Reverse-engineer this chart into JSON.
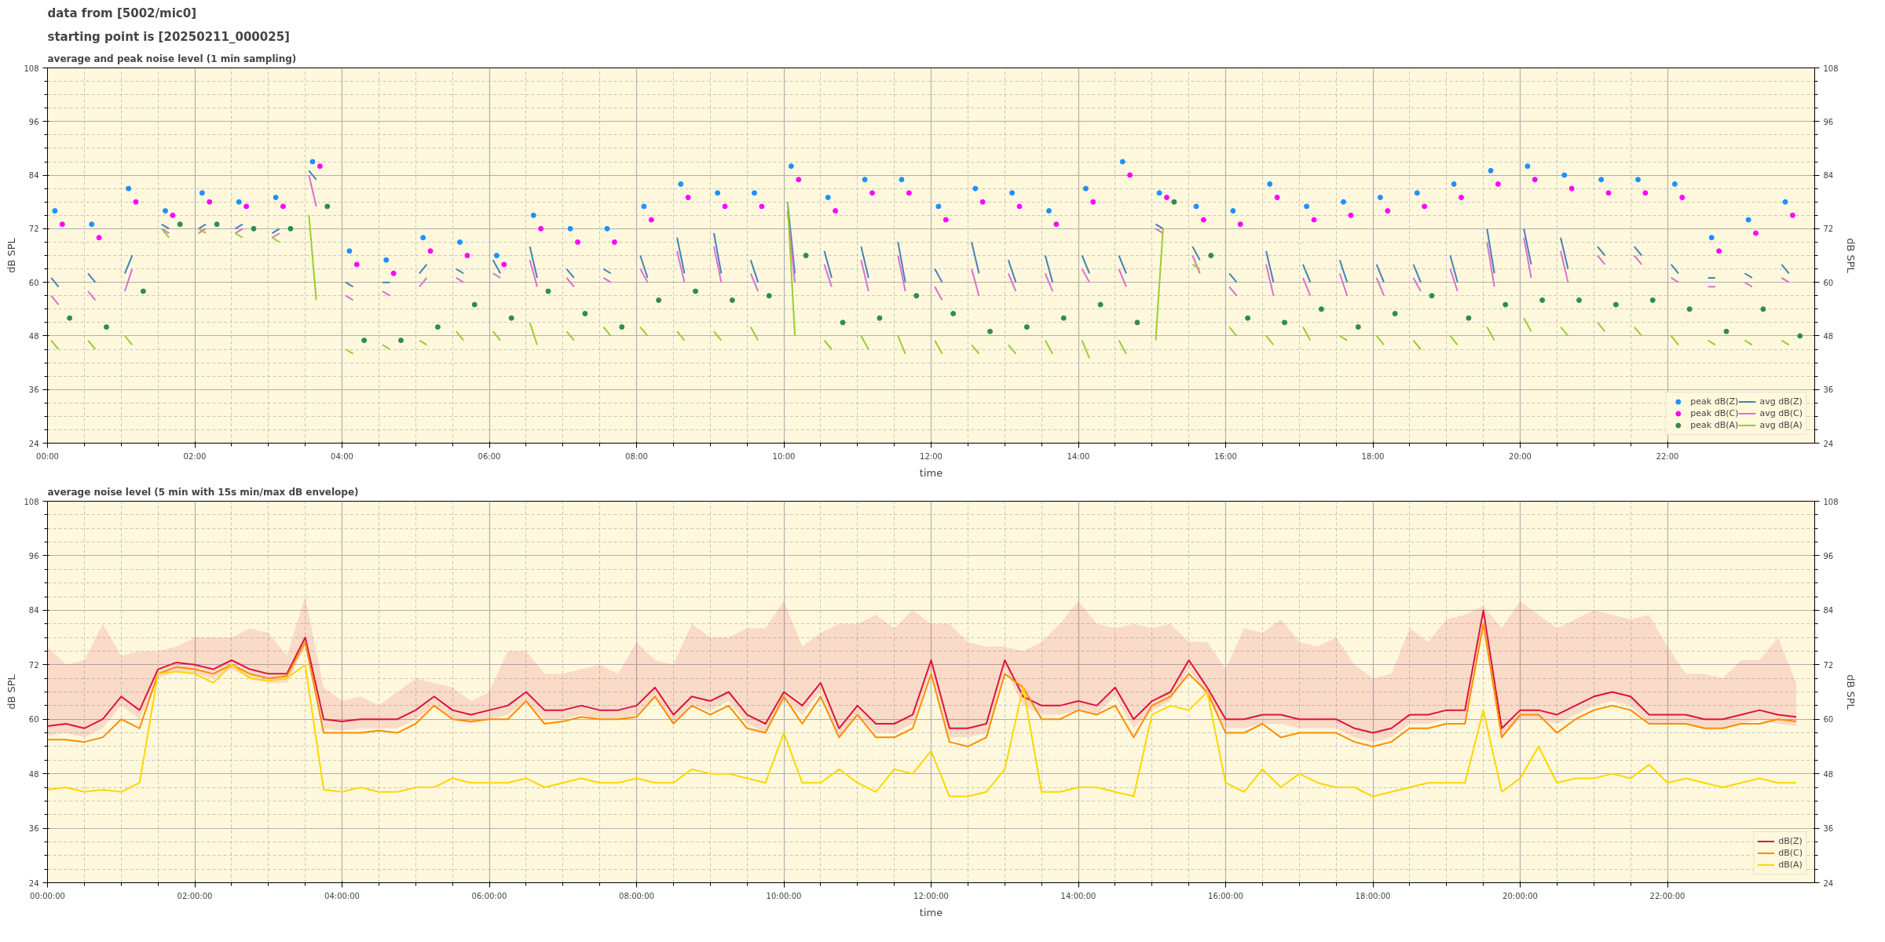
{
  "chart_data": [
    {
      "type": "line",
      "title": "average and peak noise level (1 min sampling)",
      "annotations": [
        "data from [5002/mic0]",
        "starting point is [20250211_000025]"
      ],
      "xlabel": "time",
      "ylabel": "dB SPL",
      "y2label": "dB SPL",
      "xlim": [
        0,
        24
      ],
      "ylim": [
        24,
        108
      ],
      "y2lim": [
        24,
        108
      ],
      "xticks": [
        {
          "value": 0,
          "label": "00:00"
        },
        {
          "value": 2,
          "label": "02:00"
        },
        {
          "value": 4,
          "label": "04:00"
        },
        {
          "value": 6,
          "label": "06:00"
        },
        {
          "value": 8,
          "label": "08:00"
        },
        {
          "value": 10,
          "label": "10:00"
        },
        {
          "value": 12,
          "label": "12:00"
        },
        {
          "value": 14,
          "label": "14:00"
        },
        {
          "value": 16,
          "label": "16:00"
        },
        {
          "value": 18,
          "label": "18:00"
        },
        {
          "value": 20,
          "label": "20:00"
        },
        {
          "value": 22,
          "label": "22:00"
        }
      ],
      "yticks": [
        24,
        36,
        48,
        60,
        72,
        84,
        96,
        108
      ],
      "y2ticks": [
        24,
        36,
        48,
        60,
        72,
        84,
        96,
        108
      ],
      "grid": true,
      "legend": "bottom right",
      "x": [
        0.05,
        0.15,
        0.2,
        0.55,
        0.65,
        0.7,
        1.05,
        1.15,
        1.2,
        1.55,
        1.65,
        1.7,
        2.05,
        2.15,
        2.2,
        2.55,
        2.65,
        2.7,
        3.05,
        3.15,
        3.2,
        3.55,
        3.65,
        3.7,
        4.05,
        4.15,
        4.2,
        4.55,
        4.65,
        4.7,
        5.05,
        5.15,
        5.2,
        5.55,
        5.65,
        5.7,
        6.05,
        6.15,
        6.2,
        6.55,
        6.65,
        6.7,
        7.05,
        7.15,
        7.2,
        7.55,
        7.65,
        7.7,
        8.05,
        8.15,
        8.2,
        8.55,
        8.65,
        8.7,
        9.05,
        9.15,
        9.2,
        9.55,
        9.65,
        9.7,
        10.05,
        10.15,
        10.2,
        10.55,
        10.65,
        10.7,
        11.05,
        11.15,
        11.2,
        11.55,
        11.65,
        11.7,
        12.05,
        12.15,
        12.2,
        12.55,
        12.65,
        12.7,
        13.05,
        13.15,
        13.2,
        13.55,
        13.65,
        13.7,
        14.05,
        14.15,
        14.2,
        14.55,
        14.65,
        14.7,
        15.05,
        15.15,
        15.2,
        15.55,
        15.65,
        15.7,
        16.05,
        16.15,
        16.2,
        16.55,
        16.65,
        16.7,
        17.05,
        17.15,
        17.2,
        17.55,
        17.65,
        17.7,
        18.05,
        18.15,
        18.2,
        18.55,
        18.65,
        18.7,
        19.05,
        19.15,
        19.2,
        19.55,
        19.65,
        19.7,
        20.05,
        20.15,
        20.2,
        20.55,
        20.65,
        20.7,
        21.05,
        21.15,
        21.2,
        21.55,
        21.65,
        21.7,
        22.05,
        22.15,
        22.2,
        22.55,
        22.65,
        22.7,
        23.05,
        23.15,
        23.2,
        23.55,
        23.65
      ],
      "series": [
        {
          "name": "peak dB(Z)",
          "type": "scatter",
          "color": "#1e90ff",
          "x": [
            0.1,
            0.6,
            1.1,
            1.6,
            2.1,
            2.6,
            3.1,
            3.6,
            4.1,
            4.6,
            5.1,
            5.6,
            6.1,
            6.6,
            7.1,
            7.6,
            8.1,
            8.6,
            9.1,
            9.6,
            10.1,
            10.6,
            11.1,
            11.6,
            12.1,
            12.6,
            13.1,
            13.6,
            14.1,
            14.6,
            15.1,
            15.6,
            16.1,
            16.6,
            17.1,
            17.6,
            18.1,
            18.6,
            19.1,
            19.6,
            20.1,
            20.6,
            21.1,
            21.6,
            22.1,
            22.6,
            23.1,
            23.6
          ],
          "values": [
            76,
            73,
            81,
            76,
            80,
            78,
            79,
            87,
            67,
            65,
            70,
            69,
            66,
            75,
            72,
            72,
            77,
            82,
            80,
            80,
            86,
            79,
            83,
            83,
            77,
            81,
            80,
            76,
            81,
            87,
            80,
            77,
            76,
            82,
            77,
            78,
            79,
            80,
            82,
            85,
            86,
            84,
            83,
            83,
            82,
            70,
            74,
            78
          ]
        },
        {
          "name": "peak dB(C)",
          "type": "scatter",
          "color": "#ff00ff",
          "x": [
            0.2,
            0.7,
            1.2,
            1.7,
            2.2,
            2.7,
            3.2,
            3.7,
            4.2,
            4.7,
            5.2,
            5.7,
            6.2,
            6.7,
            7.2,
            7.7,
            8.2,
            8.7,
            9.2,
            9.7,
            10.2,
            10.7,
            11.2,
            11.7,
            12.2,
            12.7,
            13.2,
            13.7,
            14.2,
            14.7,
            15.2,
            15.7,
            16.2,
            16.7,
            17.2,
            17.7,
            18.2,
            18.7,
            19.2,
            19.7,
            20.2,
            20.7,
            21.2,
            21.7,
            22.2,
            22.7,
            23.2,
            23.7
          ],
          "values": [
            73,
            70,
            78,
            75,
            78,
            77,
            77,
            86,
            64,
            62,
            67,
            66,
            64,
            72,
            69,
            69,
            74,
            79,
            77,
            77,
            83,
            76,
            80,
            80,
            74,
            78,
            77,
            73,
            78,
            84,
            79,
            74,
            73,
            79,
            74,
            75,
            76,
            77,
            79,
            82,
            83,
            81,
            80,
            80,
            79,
            67,
            71,
            75
          ]
        },
        {
          "name": "peak dB(A)",
          "type": "scatter",
          "color": "#2e8b57",
          "x": [
            0.3,
            0.8,
            1.3,
            1.8,
            2.3,
            2.8,
            3.3,
            3.8,
            4.3,
            4.8,
            5.3,
            5.8,
            6.3,
            6.8,
            7.3,
            7.8,
            8.3,
            8.8,
            9.3,
            9.8,
            10.3,
            10.8,
            11.3,
            11.8,
            12.3,
            12.8,
            13.3,
            13.8,
            14.3,
            14.8,
            15.3,
            15.8,
            16.3,
            16.8,
            17.3,
            17.8,
            18.3,
            18.8,
            19.3,
            19.8,
            20.3,
            20.8,
            21.3,
            21.8,
            22.3,
            22.8,
            23.3,
            23.8
          ],
          "values": [
            52,
            50,
            58,
            73,
            73,
            72,
            72,
            77,
            47,
            47,
            50,
            55,
            52,
            58,
            53,
            50,
            56,
            58,
            56,
            57,
            66,
            51,
            52,
            57,
            53,
            49,
            50,
            52,
            55,
            51,
            78,
            66,
            52,
            51,
            54,
            50,
            53,
            57,
            52,
            55,
            56,
            56,
            55,
            56,
            54,
            49,
            54,
            48
          ]
        },
        {
          "name": "avg dB(Z)",
          "color": "#4682b4",
          "values": [
            61,
            59,
            null,
            62,
            60,
            null,
            62,
            66,
            null,
            73,
            72,
            null,
            72,
            73,
            null,
            72,
            73,
            null,
            71,
            72,
            null,
            85,
            83,
            null,
            60,
            59,
            null,
            60,
            60,
            null,
            62,
            64,
            null,
            63,
            62,
            null,
            65,
            62,
            null,
            68,
            61,
            null,
            63,
            61,
            null,
            63,
            62,
            null,
            66,
            61,
            null,
            70,
            62,
            null,
            71,
            62,
            null,
            65,
            60,
            null,
            78,
            62,
            null,
            67,
            61,
            null,
            68,
            61,
            null,
            69,
            60,
            null,
            63,
            60,
            null,
            69,
            62,
            null,
            65,
            60,
            null,
            66,
            60,
            null,
            66,
            62,
            null,
            66,
            62,
            null,
            73,
            72,
            null,
            68,
            65,
            null,
            62,
            60,
            null,
            67,
            60,
            null,
            64,
            60,
            null,
            65,
            60,
            null,
            64,
            60,
            null,
            64,
            60,
            null,
            66,
            60,
            null,
            72,
            62,
            null,
            72,
            64,
            null,
            70,
            63,
            null,
            68,
            66,
            null,
            68,
            66,
            null,
            64,
            62,
            null,
            61,
            61,
            null,
            62,
            61,
            null,
            64,
            62
          ]
        },
        {
          "name": "avg dB(C)",
          "color": "#da70d6",
          "values": [
            57,
            55,
            null,
            58,
            56,
            null,
            58,
            63,
            null,
            72,
            71,
            null,
            71,
            72,
            null,
            71,
            72,
            null,
            70,
            71,
            null,
            84,
            77,
            null,
            57,
            56,
            null,
            58,
            57,
            null,
            59,
            61,
            null,
            61,
            60,
            null,
            62,
            61,
            null,
            65,
            59,
            null,
            61,
            59,
            null,
            61,
            60,
            null,
            63,
            60,
            null,
            67,
            60,
            null,
            68,
            60,
            null,
            62,
            58,
            null,
            76,
            60,
            null,
            64,
            59,
            null,
            65,
            58,
            null,
            66,
            58,
            null,
            59,
            56,
            null,
            63,
            57,
            null,
            62,
            58,
            null,
            62,
            58,
            null,
            63,
            60,
            null,
            63,
            59,
            null,
            72,
            71,
            null,
            66,
            62,
            null,
            59,
            57,
            null,
            64,
            57,
            null,
            61,
            57,
            null,
            62,
            57,
            null,
            61,
            57,
            null,
            61,
            58,
            null,
            63,
            58,
            null,
            69,
            59,
            null,
            70,
            61,
            null,
            67,
            60,
            null,
            66,
            64,
            null,
            66,
            64,
            null,
            61,
            60,
            null,
            59,
            59,
            null,
            60,
            59,
            null,
            61,
            60
          ]
        },
        {
          "name": "avg dB(A)",
          "color": "#9acd32",
          "values": [
            47,
            45,
            null,
            47,
            45,
            null,
            48,
            46,
            null,
            72,
            70,
            null,
            72,
            71,
            null,
            71,
            70,
            null,
            70,
            69,
            null,
            75,
            56,
            null,
            45,
            44,
            null,
            46,
            45,
            null,
            47,
            46,
            null,
            49,
            47,
            null,
            49,
            47,
            null,
            51,
            46,
            null,
            49,
            47,
            null,
            50,
            48,
            null,
            50,
            48,
            null,
            49,
            47,
            null,
            49,
            47,
            null,
            50,
            47,
            null,
            78,
            48,
            null,
            47,
            45,
            null,
            48,
            45,
            null,
            48,
            44,
            null,
            47,
            44,
            null,
            46,
            44,
            null,
            46,
            44,
            null,
            47,
            44,
            null,
            47,
            43,
            null,
            47,
            44,
            null,
            47,
            72,
            null,
            64,
            63,
            null,
            50,
            48,
            null,
            48,
            46,
            null,
            50,
            47,
            null,
            48,
            47,
            null,
            48,
            46,
            null,
            47,
            45,
            null,
            48,
            46,
            null,
            50,
            47,
            null,
            52,
            49,
            null,
            50,
            48,
            null,
            51,
            49,
            null,
            50,
            48,
            null,
            48,
            46,
            null,
            47,
            46,
            null,
            47,
            46,
            null,
            47,
            46
          ]
        }
      ]
    },
    {
      "type": "line",
      "title": "average noise level (5 min with 15s min/max dB envelope)",
      "xlabel": "time",
      "ylabel": "dB SPL",
      "y2label": "dB SPL",
      "xlim": [
        0,
        24
      ],
      "ylim": [
        24,
        108
      ],
      "y2lim": [
        24,
        108
      ],
      "xticks": [
        {
          "value": 0,
          "label": "00:00:00"
        },
        {
          "value": 2,
          "label": "02:00:00"
        },
        {
          "value": 4,
          "label": "04:00:00"
        },
        {
          "value": 6,
          "label": "06:00:00"
        },
        {
          "value": 8,
          "label": "08:00:00"
        },
        {
          "value": 10,
          "label": "10:00:00"
        },
        {
          "value": 12,
          "label": "12:00:00"
        },
        {
          "value": 14,
          "label": "14:00:00"
        },
        {
          "value": 16,
          "label": "16:00:00"
        },
        {
          "value": 18,
          "label": "18:00:00"
        },
        {
          "value": 20,
          "label": "20:00:00"
        },
        {
          "value": 22,
          "label": "22:00:00"
        }
      ],
      "yticks": [
        24,
        36,
        48,
        60,
        72,
        84,
        96,
        108
      ],
      "y2ticks": [
        24,
        36,
        48,
        60,
        72,
        84,
        96,
        108
      ],
      "grid": true,
      "legend": "bottom right",
      "x": [
        0,
        0.25,
        0.5,
        0.75,
        1,
        1.25,
        1.5,
        1.75,
        2,
        2.25,
        2.5,
        2.75,
        3,
        3.25,
        3.5,
        3.75,
        4,
        4.25,
        4.5,
        4.75,
        5,
        5.25,
        5.5,
        5.75,
        6,
        6.25,
        6.5,
        6.75,
        7,
        7.25,
        7.5,
        7.75,
        8,
        8.25,
        8.5,
        8.75,
        9,
        9.25,
        9.5,
        9.75,
        10,
        10.25,
        10.5,
        10.75,
        11,
        11.25,
        11.5,
        11.75,
        12,
        12.25,
        12.5,
        12.75,
        13,
        13.25,
        13.5,
        13.75,
        14,
        14.25,
        14.5,
        14.75,
        15,
        15.25,
        15.5,
        15.75,
        16,
        16.25,
        16.5,
        16.75,
        17,
        17.25,
        17.5,
        17.75,
        18,
        18.25,
        18.5,
        18.75,
        19,
        19.25,
        19.5,
        19.75,
        20,
        20.25,
        20.5,
        20.75,
        21,
        21.25,
        21.5,
        21.75,
        22,
        22.25,
        22.5,
        22.75,
        23,
        23.25,
        23.5,
        23.75
      ],
      "series": [
        {
          "name": "dB(Z)",
          "color": "#dc143c",
          "values": [
            58.5,
            59,
            58,
            60,
            65,
            62,
            71,
            72.5,
            72,
            71,
            73,
            71,
            70,
            70,
            78,
            60,
            59.5,
            60,
            60,
            60,
            62,
            65,
            62,
            61,
            62,
            63,
            66,
            62,
            62,
            63,
            62,
            62,
            63,
            67,
            61,
            65,
            64,
            66,
            61,
            59,
            66,
            63,
            68,
            58,
            63,
            59,
            59,
            61,
            73,
            58,
            58,
            59,
            73,
            65,
            63,
            63,
            64,
            63,
            67,
            60,
            64,
            66,
            73,
            67,
            60,
            60,
            61,
            61,
            60,
            60,
            60,
            58,
            57,
            58,
            61,
            61,
            62,
            62,
            84,
            58,
            62,
            62,
            61,
            63,
            65,
            66,
            65,
            61,
            61,
            61,
            60,
            60,
            61,
            62,
            61,
            60.5
          ],
          "lower": [
            56.5,
            57,
            56,
            58,
            63,
            60,
            69,
            70.5,
            70,
            69,
            71,
            69,
            68,
            68,
            76,
            58,
            57.5,
            58,
            58,
            58,
            60,
            63,
            60,
            59,
            60,
            61,
            64,
            60,
            60,
            61,
            60,
            60,
            61,
            65,
            59,
            63,
            62,
            64,
            59,
            57,
            64,
            61,
            66,
            56,
            61,
            57,
            57,
            59,
            71,
            56,
            56,
            57,
            71,
            63,
            61,
            61,
            62,
            61,
            65,
            58,
            62,
            64,
            71,
            65,
            58,
            58,
            59,
            59,
            58,
            58,
            58,
            56,
            55,
            56,
            59,
            59,
            60,
            60,
            82,
            56,
            60,
            60,
            59,
            61,
            63,
            64,
            63,
            59,
            59,
            59,
            58,
            58,
            59,
            60,
            59,
            58.5
          ],
          "upper": [
            76,
            72,
            73,
            81,
            74,
            75,
            75,
            76,
            78,
            78,
            78,
            80,
            79,
            74,
            87,
            67,
            64,
            65,
            63,
            66,
            69,
            68,
            67,
            64,
            66,
            75,
            75,
            70,
            70,
            71,
            72,
            70,
            77,
            73,
            72,
            81,
            78,
            78,
            80,
            80,
            86,
            76,
            79,
            81,
            81,
            83,
            80,
            84,
            81,
            81,
            77,
            76,
            76,
            75,
            77,
            81,
            86,
            81,
            80,
            81,
            80,
            81,
            77,
            77,
            71,
            80,
            79,
            82,
            77,
            76,
            78,
            72,
            69,
            70,
            80,
            77,
            82,
            83,
            85,
            80,
            86,
            83,
            80,
            82,
            84,
            83,
            82,
            83,
            76,
            70,
            70,
            69,
            73,
            73,
            78,
            68
          ]
        },
        {
          "name": "dB(C)",
          "color": "#ff8c00",
          "values": [
            55.5,
            55.5,
            55,
            56,
            60,
            58,
            70,
            71.5,
            71,
            70,
            72,
            70,
            69,
            69.5,
            77,
            57,
            57,
            57,
            57.5,
            57,
            59,
            63,
            60,
            59.5,
            60,
            60,
            64,
            59,
            59.5,
            60.5,
            60,
            60,
            60.5,
            65,
            59,
            63,
            61,
            63,
            58,
            57,
            65,
            59,
            65,
            56,
            61,
            56,
            56,
            58,
            70,
            55,
            54,
            56,
            70,
            67,
            60,
            60,
            62,
            61,
            63,
            56,
            63,
            65,
            70,
            66,
            57,
            57,
            59,
            56,
            57,
            57,
            57,
            55,
            54,
            55,
            58,
            58,
            59,
            59,
            81,
            56,
            61,
            61,
            57,
            60,
            62,
            63,
            62,
            59,
            59,
            59,
            58,
            58,
            59,
            59,
            60,
            59.5
          ]
        },
        {
          "name": "dB(A)",
          "color": "#ffd700",
          "values": [
            44.5,
            45,
            44,
            44.5,
            44,
            46,
            70,
            70.5,
            70,
            68,
            72,
            69,
            68.5,
            69,
            72,
            44.5,
            44,
            45,
            44,
            44,
            45,
            45,
            47,
            46,
            46,
            46,
            47,
            45,
            46,
            47,
            46,
            46,
            47,
            46,
            46,
            49,
            48,
            48,
            47,
            46,
            57,
            46,
            46,
            49,
            46,
            44,
            49,
            48,
            53,
            43,
            43,
            44,
            49,
            67,
            44,
            44,
            45,
            45,
            44,
            43,
            61,
            63,
            62,
            66,
            46,
            44,
            49,
            45,
            48,
            46,
            45,
            45,
            43,
            44,
            45,
            46,
            46,
            46,
            62,
            44,
            47,
            54,
            46,
            47,
            47,
            48,
            47,
            50,
            46,
            47,
            46,
            45,
            46,
            47,
            46,
            46
          ]
        }
      ]
    }
  ]
}
